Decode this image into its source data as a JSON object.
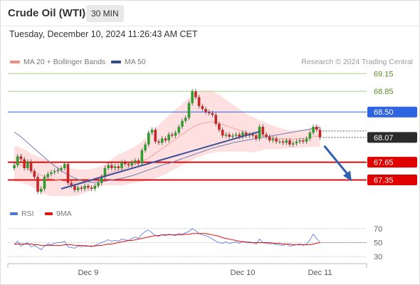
{
  "header": {
    "title": "Crude Oil (WTI)",
    "timeframe": "30 MIN",
    "timestamp": "Tuesday, December 10, 2024 11:26:43 AM CET"
  },
  "legend": {
    "ma20": {
      "label": "MA 20 + Bollinger Bands",
      "color": "#f28b82"
    },
    "ma50": {
      "label": "MA 50",
      "color": "#2e4d8f"
    },
    "credit": "Research © 2024 Trading Central"
  },
  "rsi_legend": {
    "rsi": {
      "label": "RSI",
      "color": "#4f73d9"
    },
    "ma9": {
      "label": "9MA",
      "color": "#e01010"
    }
  },
  "chart_data": [
    {
      "type": "candlestick",
      "title": "Crude Oil (WTI)",
      "ylim": [
        67.2,
        69.25
      ],
      "x_ticks": [
        {
          "label": "Dec 9",
          "index": 22
        },
        {
          "label": "Dec 10",
          "index": 68
        },
        {
          "label": "Dec 11",
          "index": 91
        }
      ],
      "levels": [
        {
          "value": 69.15,
          "label": "69.15",
          "style": "green-line"
        },
        {
          "value": 68.85,
          "label": "68.85",
          "style": "green-line"
        },
        {
          "value": 68.5,
          "label": "68.50",
          "style": "blue-line"
        },
        {
          "value": 68.07,
          "label": "68.07",
          "style": "current-price"
        },
        {
          "value": 67.65,
          "label": "67.65",
          "style": "red-line"
        },
        {
          "value": 67.35,
          "label": "67.35",
          "style": "red-line"
        }
      ],
      "closes": [
        67.6,
        67.75,
        67.7,
        67.55,
        67.66,
        67.5,
        67.4,
        67.15,
        67.2,
        67.4,
        67.45,
        67.48,
        67.5,
        67.52,
        67.55,
        67.62,
        67.3,
        67.25,
        67.18,
        67.22,
        67.2,
        67.25,
        67.22,
        67.2,
        67.25,
        67.3,
        67.4,
        67.55,
        67.6,
        67.55,
        67.58,
        67.55,
        67.65,
        67.62,
        67.6,
        67.65,
        67.68,
        67.63,
        67.85,
        67.95,
        68.15,
        68.2,
        68.0,
        67.98,
        68.05,
        68.02,
        68.12,
        68.1,
        68.15,
        68.25,
        68.35,
        68.4,
        68.65,
        68.85,
        68.75,
        68.6,
        68.55,
        68.5,
        68.48,
        68.45,
        68.3,
        68.2,
        68.1,
        68.12,
        68.08,
        68.1,
        68.12,
        68.08,
        68.15,
        68.1,
        68.12,
        68.1,
        68.05,
        68.25,
        68.12,
        68.08,
        68.02,
        68.05,
        68.0,
        68.0,
        67.98,
        68.02,
        67.95,
        67.97,
        68.0,
        68.02,
        68.0,
        68.05,
        68.15,
        68.25,
        68.2,
        68.07
      ],
      "ma20": [
        67.62,
        67.62,
        67.6,
        67.58,
        67.55,
        67.52,
        67.49,
        67.46,
        67.43,
        67.41,
        67.39,
        67.37,
        67.36,
        67.35,
        67.34,
        67.33,
        67.32,
        67.31,
        67.31,
        67.31,
        67.32,
        67.33,
        67.34,
        67.36,
        67.38,
        67.4,
        67.42,
        67.44,
        67.46,
        67.48,
        67.5,
        67.52,
        67.53,
        67.55,
        67.57,
        67.59,
        67.61,
        67.63,
        67.66,
        67.69,
        67.72,
        67.76,
        67.8,
        67.84,
        67.88,
        67.92,
        67.96,
        68.0,
        68.04,
        68.08,
        68.12,
        68.16,
        68.2,
        68.24,
        68.27,
        68.29,
        68.31,
        68.32,
        68.33,
        68.33,
        68.32,
        68.31,
        68.29,
        68.27,
        68.25,
        68.23,
        68.21,
        68.19,
        68.17,
        68.15,
        68.13,
        68.12,
        68.11,
        68.1,
        68.1,
        68.09,
        68.08,
        68.07,
        68.06,
        68.05,
        68.05,
        68.04,
        68.04,
        68.04,
        68.04,
        68.05,
        68.05,
        68.06,
        68.07,
        68.08,
        68.09,
        68.1
      ],
      "ma50": [
        68.16,
        68.12,
        68.08,
        68.03,
        67.98,
        67.93,
        67.88,
        67.83,
        67.78,
        67.73,
        67.68,
        67.63,
        67.59,
        67.55,
        67.51,
        67.47,
        67.44,
        67.41,
        67.38,
        67.36,
        67.34,
        67.33,
        67.32,
        67.31,
        67.31,
        67.31,
        67.32,
        67.33,
        67.34,
        67.35,
        67.36,
        67.37,
        67.38,
        67.39,
        67.41,
        67.42,
        67.44,
        67.46,
        67.48,
        67.5,
        67.52,
        67.54,
        67.56,
        67.58,
        67.6,
        67.62,
        67.63,
        67.65,
        67.67,
        67.69,
        67.71,
        67.73,
        67.75,
        67.77,
        67.79,
        67.81,
        67.83,
        67.85,
        67.87,
        67.89,
        67.9,
        67.92,
        67.93,
        67.95,
        67.96,
        67.98,
        67.99,
        68.0,
        68.01,
        68.02,
        68.03,
        68.04,
        68.05,
        68.06,
        68.07,
        68.08,
        68.09,
        68.1,
        68.11,
        68.12,
        68.13,
        68.14,
        68.15,
        68.16,
        68.17,
        68.18,
        68.19,
        68.2,
        68.21,
        68.22,
        68.23,
        68.24
      ],
      "band_width": [
        0.3,
        0.3,
        0.29,
        0.29,
        0.28,
        0.28,
        0.28,
        0.29,
        0.3,
        0.3,
        0.3,
        0.29,
        0.28,
        0.27,
        0.26,
        0.25,
        0.25,
        0.24,
        0.23,
        0.22,
        0.21,
        0.2,
        0.19,
        0.18,
        0.17,
        0.17,
        0.17,
        0.18,
        0.2,
        0.22,
        0.24,
        0.26,
        0.27,
        0.28,
        0.29,
        0.3,
        0.31,
        0.32,
        0.34,
        0.36,
        0.38,
        0.4,
        0.42,
        0.44,
        0.46,
        0.47,
        0.48,
        0.49,
        0.5,
        0.51,
        0.52,
        0.53,
        0.54,
        0.55,
        0.55,
        0.55,
        0.55,
        0.54,
        0.53,
        0.52,
        0.5,
        0.48,
        0.46,
        0.44,
        0.42,
        0.4,
        0.38,
        0.36,
        0.34,
        0.32,
        0.31,
        0.3,
        0.28,
        0.26,
        0.24,
        0.22,
        0.21,
        0.2,
        0.19,
        0.18,
        0.17,
        0.16,
        0.15,
        0.15,
        0.15,
        0.15,
        0.15,
        0.15,
        0.16,
        0.17,
        0.18,
        0.19
      ],
      "trendlines": [
        {
          "from": [
            14,
            67.2
          ],
          "to": [
            73,
            68.17
          ]
        }
      ],
      "projection": {
        "from": [
          91,
          68.0
        ],
        "to": [
          100,
          67.35
        ]
      }
    },
    {
      "type": "line",
      "title": "RSI",
      "ylim": [
        20,
        80
      ],
      "y_ticks": [
        70,
        50,
        30
      ],
      "series": [
        {
          "name": "RSI",
          "values": [
            47,
            52,
            45,
            48,
            50,
            44,
            46,
            43,
            40,
            45,
            48,
            47,
            49,
            50,
            50,
            52,
            44,
            43,
            42,
            45,
            44,
            46,
            45,
            44,
            46,
            48,
            50,
            52,
            54,
            52,
            53,
            52,
            55,
            54,
            53,
            56,
            58,
            56,
            62,
            66,
            68,
            64,
            60,
            59,
            61,
            60,
            62,
            61,
            60,
            63,
            62,
            64,
            66,
            70,
            67,
            63,
            61,
            60,
            58,
            55,
            52,
            50,
            49,
            51,
            49,
            50,
            51,
            49,
            52,
            50,
            51,
            50,
            48,
            55,
            50,
            49,
            48,
            49,
            47,
            47,
            46,
            48,
            45,
            46,
            47,
            48,
            46,
            48,
            54,
            62,
            56,
            50
          ]
        },
        {
          "name": "9MA",
          "values": [
            48,
            48,
            48,
            48,
            48,
            48,
            47,
            47,
            46,
            46,
            46,
            46,
            46,
            46,
            46,
            47,
            47,
            47,
            46,
            46,
            46,
            45,
            45,
            45,
            45,
            46,
            46,
            47,
            48,
            48,
            49,
            50,
            51,
            52,
            53,
            53,
            54,
            55,
            56,
            57,
            58,
            59,
            60,
            60,
            61,
            61,
            61,
            61,
            61,
            61,
            61,
            62,
            62,
            63,
            63,
            63,
            63,
            63,
            62,
            61,
            60,
            59,
            57,
            56,
            55,
            54,
            53,
            52,
            51,
            51,
            50,
            50,
            50,
            50,
            50,
            50,
            50,
            49,
            49,
            49,
            48,
            48,
            48,
            47,
            47,
            47,
            47,
            47,
            47,
            48,
            49,
            50
          ]
        }
      ]
    }
  ]
}
